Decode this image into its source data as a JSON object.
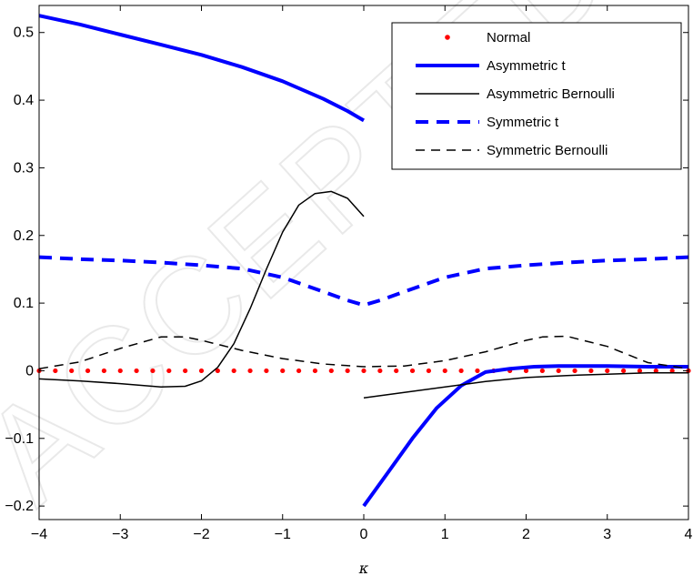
{
  "watermark": "ACCEPTED MANUSCRIPT",
  "chart_data": {
    "type": "line",
    "xlabel": "κ",
    "ylabel": "",
    "title": "",
    "xlim": [
      -4,
      4
    ],
    "ylim": [
      -0.22,
      0.54
    ],
    "xticks": [
      -4,
      -3,
      -2,
      -1,
      0,
      1,
      2,
      3,
      4
    ],
    "xtick_labels": [
      "−4",
      "−3",
      "−2",
      "−1",
      "0",
      "1",
      "2",
      "3",
      "4"
    ],
    "yticks": [
      -0.2,
      -0.1,
      0,
      0.1,
      0.2,
      0.3,
      0.4,
      0.5
    ],
    "ytick_labels": [
      "−0.2",
      "−0.1",
      "0",
      "0.1",
      "0.2",
      "0.3",
      "0.4",
      "0.5"
    ],
    "grid": false,
    "legend_position": "top-right",
    "series": [
      {
        "name": "Normal",
        "style": "dotted-markers",
        "color": "#ff0000",
        "segments": [
          {
            "x": [
              -4,
              -3.8,
              -3.6,
              -3.4,
              -3.2,
              -3,
              -2.8,
              -2.6,
              -2.4,
              -2.2,
              -2,
              -1.8,
              -1.6,
              -1.4,
              -1.2,
              -1,
              -0.8,
              -0.6,
              -0.4,
              -0.2,
              0,
              0.2,
              0.4,
              0.6,
              0.8,
              1,
              1.2,
              1.4,
              1.6,
              1.8,
              2,
              2.2,
              2.4,
              2.6,
              2.8,
              3,
              3.2,
              3.4,
              3.6,
              3.8,
              4
            ],
            "y": [
              0,
              0,
              0,
              0,
              0,
              0,
              0,
              0,
              0,
              0,
              0,
              0,
              0,
              0,
              0,
              0,
              0,
              0,
              0,
              0,
              0,
              0,
              0,
              0,
              0,
              0,
              0,
              0,
              0,
              0,
              0,
              0,
              0,
              0,
              0,
              0,
              0,
              0,
              0,
              0,
              0
            ]
          }
        ]
      },
      {
        "name": "Asymmetric t",
        "style": "solid-thick",
        "color": "#0000ff",
        "segments": [
          {
            "x": [
              -4,
              -3.5,
              -3,
              -2.5,
              -2,
              -1.5,
              -1,
              -0.5,
              -0.2,
              0
            ],
            "y": [
              0.525,
              0.512,
              0.497,
              0.482,
              0.467,
              0.449,
              0.428,
              0.402,
              0.384,
              0.37
            ]
          },
          {
            "x": [
              0,
              0.3,
              0.6,
              0.9,
              1.2,
              1.5,
              1.8,
              2.1,
              2.4,
              3,
              3.5,
              4
            ],
            "y": [
              -0.2,
              -0.15,
              -0.1,
              -0.055,
              -0.022,
              -0.002,
              0.003,
              0.006,
              0.007,
              0.007,
              0.006,
              0.006
            ]
          }
        ]
      },
      {
        "name": "Asymmetric Bernoulli",
        "style": "solid-thin",
        "color": "#000000",
        "segments": [
          {
            "x": [
              -4,
              -3.5,
              -3,
              -2.5,
              -2.2,
              -2,
              -1.8,
              -1.6,
              -1.4,
              -1.2,
              -1,
              -0.8,
              -0.6,
              -0.4,
              -0.2,
              0
            ],
            "y": [
              -0.012,
              -0.015,
              -0.019,
              -0.024,
              -0.023,
              -0.015,
              0.005,
              0.04,
              0.092,
              0.15,
              0.205,
              0.245,
              0.262,
              0.265,
              0.255,
              0.228
            ]
          },
          {
            "x": [
              0,
              0.5,
              1,
              1.5,
              2,
              2.5,
              3,
              3.5,
              4
            ],
            "y": [
              -0.04,
              -0.032,
              -0.024,
              -0.016,
              -0.01,
              -0.007,
              -0.005,
              -0.003,
              -0.003
            ]
          }
        ]
      },
      {
        "name": "Symmetric t",
        "style": "dashed-thick",
        "color": "#0000ff",
        "segments": [
          {
            "x": [
              -4,
              -3.5,
              -3,
              -2.5,
              -2,
              -1.5,
              -1,
              -0.5,
              -0.2,
              0,
              0.2,
              0.5,
              1,
              1.5,
              2,
              2.5,
              3,
              3.5,
              4
            ],
            "y": [
              0.168,
              0.165,
              0.163,
              0.16,
              0.156,
              0.151,
              0.138,
              0.117,
              0.104,
              0.097,
              0.104,
              0.117,
              0.138,
              0.151,
              0.156,
              0.16,
              0.163,
              0.165,
              0.168
            ]
          }
        ]
      },
      {
        "name": "Symmetric Bernoulli",
        "style": "dashed-thin",
        "color": "#000000",
        "segments": [
          {
            "x": [
              -4,
              -3.5,
              -3,
              -2.5,
              -2.2,
              -2,
              -1.5,
              -1,
              -0.5,
              0,
              0.5,
              1,
              1.5,
              2,
              2.2,
              2.5,
              3,
              3.5,
              4
            ],
            "y": [
              0.003,
              0.013,
              0.033,
              0.05,
              0.05,
              0.045,
              0.03,
              0.018,
              0.01,
              0.006,
              0.007,
              0.015,
              0.028,
              0.045,
              0.05,
              0.051,
              0.036,
              0.012,
              0.003
            ]
          }
        ]
      }
    ]
  }
}
